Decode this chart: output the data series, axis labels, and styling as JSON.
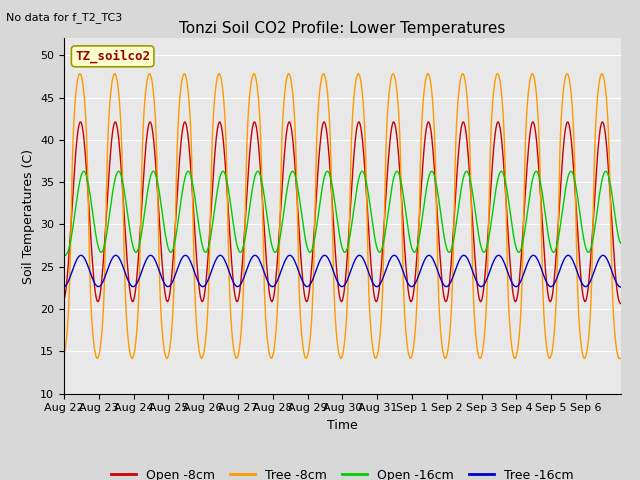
{
  "title": "Tonzi Soil CO2 Profile: Lower Temperatures",
  "subtitle": "No data for f_T2_TC3",
  "ylabel": "Soil Temperatures (C)",
  "xlabel": "Time",
  "legend_label": "TZ_soilco2",
  "ylim": [
    10,
    52
  ],
  "yticks": [
    10,
    15,
    20,
    25,
    30,
    35,
    40,
    45,
    50
  ],
  "x_tick_labels": [
    "Aug 22",
    "Aug 23",
    "Aug 24",
    "Aug 25",
    "Aug 26",
    "Aug 27",
    "Aug 28",
    "Aug 29",
    "Aug 30",
    "Aug 31",
    "Sep 1",
    "Sep 2",
    "Sep 3",
    "Sep 4",
    "Sep 5",
    "Sep 6"
  ],
  "colors": {
    "open_8cm": "#cc0000",
    "tree_8cm": "#ff9900",
    "open_16cm": "#00cc00",
    "tree_16cm": "#0000cc"
  },
  "background_color": "#e8e8e8",
  "legend_box_color": "#ffffcc",
  "legend_box_edge": "#999900",
  "fig_facecolor": "#d8d8d8",
  "title_fontsize": 11,
  "axis_label_fontsize": 9,
  "tick_fontsize": 8,
  "legend_fontsize": 9,
  "subtitle_fontsize": 8
}
